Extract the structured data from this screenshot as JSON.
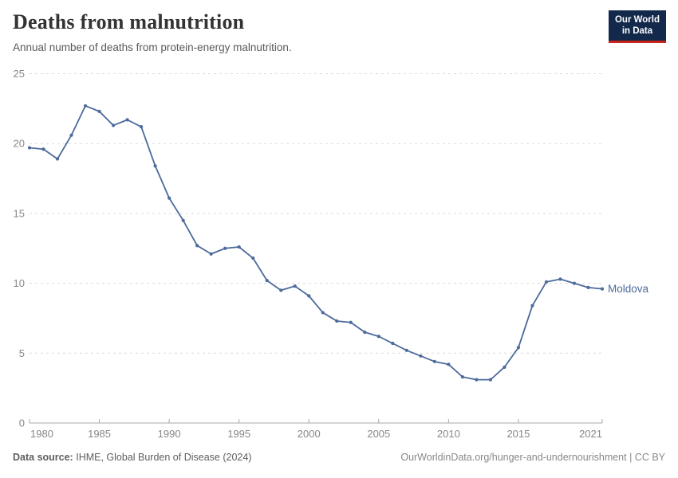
{
  "header": {
    "title": "Deaths from malnutrition",
    "subtitle": "Annual number of deaths from protein-energy malnutrition."
  },
  "logo": {
    "line1": "Our World",
    "line2": "in Data",
    "bg_color": "#12294B",
    "accent_color": "#C9251D"
  },
  "chart_data": {
    "type": "line",
    "title": "Deaths from malnutrition",
    "xlabel": "",
    "ylabel": "",
    "xlim": [
      1980,
      2021
    ],
    "ylim": [
      0,
      25
    ],
    "xticks": [
      1980,
      1985,
      1990,
      1995,
      2000,
      2005,
      2010,
      2015,
      2021
    ],
    "yticks": [
      0,
      5,
      10,
      15,
      20,
      25
    ],
    "grid": "horizontal-dashed",
    "grid_color": "#dcdcdc",
    "axis_color": "#a8a8a8",
    "tick_label_color": "#878787",
    "legend_position": "end-of-line",
    "series": [
      {
        "name": "Moldova",
        "color": "#4C6A9C",
        "x": [
          1980,
          1981,
          1982,
          1983,
          1984,
          1985,
          1986,
          1987,
          1988,
          1989,
          1990,
          1991,
          1992,
          1993,
          1994,
          1995,
          1996,
          1997,
          1998,
          1999,
          2000,
          2001,
          2002,
          2003,
          2004,
          2005,
          2006,
          2007,
          2008,
          2009,
          2010,
          2011,
          2012,
          2013,
          2014,
          2015,
          2016,
          2017,
          2018,
          2019,
          2020,
          2021
        ],
        "values": [
          19.7,
          19.6,
          18.9,
          20.6,
          22.7,
          22.3,
          21.3,
          21.7,
          21.2,
          18.4,
          16.1,
          14.5,
          12.7,
          12.1,
          12.5,
          12.6,
          11.8,
          10.2,
          9.5,
          9.8,
          9.1,
          7.9,
          7.3,
          7.2,
          6.5,
          6.2,
          5.7,
          5.2,
          4.8,
          4.4,
          4.2,
          3.3,
          3.1,
          3.1,
          4.0,
          5.4,
          8.4,
          10.1,
          10.3,
          10.0,
          9.7,
          9.6
        ]
      }
    ]
  },
  "footer": {
    "source_label": "Data source:",
    "source_text": "IHME, Global Burden of Disease (2024)",
    "credit": "OurWorldinData.org/hunger-and-undernourishment | CC BY"
  }
}
